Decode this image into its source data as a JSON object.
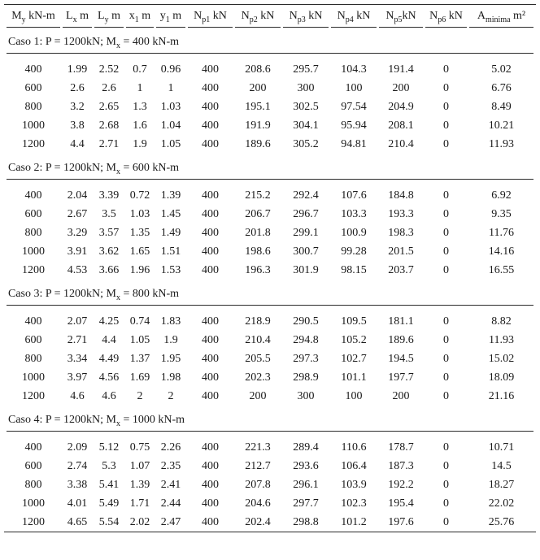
{
  "page": {
    "background": "#ffffff",
    "text_color": "#1a1a1a",
    "rule_color": "#2a2a2a"
  },
  "table": {
    "headers": [
      {
        "pre": "M",
        "sub": "y",
        "post": " kN-m"
      },
      {
        "pre": "L",
        "sub": "x",
        "post": " m"
      },
      {
        "pre": "L",
        "sub": "y",
        "post": " m"
      },
      {
        "pre": "x",
        "sub": "1",
        "post": " m"
      },
      {
        "pre": "y",
        "sub": "1",
        "post": " m"
      },
      {
        "pre": "N",
        "sub": "p1",
        "post": " kN"
      },
      {
        "pre": "N",
        "sub": "p2",
        "post": " kN"
      },
      {
        "pre": "N",
        "sub": "p3",
        "post": " kN"
      },
      {
        "pre": "N",
        "sub": "p4",
        "post": " kN"
      },
      {
        "pre": "N",
        "sub": "p5",
        "post": "kN"
      },
      {
        "pre": "N",
        "sub": "p6",
        "post": " kN"
      },
      {
        "pre": "A",
        "sub": "minima",
        "post": " m²"
      }
    ],
    "sections": [
      {
        "label": {
          "pre": "Caso 1: P = 1200kN; M",
          "sub": "x",
          "post": " = 400 kN-m"
        },
        "rows": [
          [
            "400",
            "1.99",
            "2.52",
            "0.7",
            "0.96",
            "400",
            "208.6",
            "295.7",
            "104.3",
            "191.4",
            "0",
            "5.02"
          ],
          [
            "600",
            "2.6",
            "2.6",
            "1",
            "1",
            "400",
            "200",
            "300",
            "100",
            "200",
            "0",
            "6.76"
          ],
          [
            "800",
            "3.2",
            "2.65",
            "1.3",
            "1.03",
            "400",
            "195.1",
            "302.5",
            "97.54",
            "204.9",
            "0",
            "8.49"
          ],
          [
            "1000",
            "3.8",
            "2.68",
            "1.6",
            "1.04",
            "400",
            "191.9",
            "304.1",
            "95.94",
            "208.1",
            "0",
            "10.21"
          ],
          [
            "1200",
            "4.4",
            "2.71",
            "1.9",
            "1.05",
            "400",
            "189.6",
            "305.2",
            "94.81",
            "210.4",
            "0",
            "11.93"
          ]
        ]
      },
      {
        "label": {
          "pre": "Caso 2: P = 1200kN; M",
          "sub": "x",
          "post": " = 600 kN-m"
        },
        "rows": [
          [
            "400",
            "2.04",
            "3.39",
            "0.72",
            "1.39",
            "400",
            "215.2",
            "292.4",
            "107.6",
            "184.8",
            "0",
            "6.92"
          ],
          [
            "600",
            "2.67",
            "3.5",
            "1.03",
            "1.45",
            "400",
            "206.7",
            "296.7",
            "103.3",
            "193.3",
            "0",
            "9.35"
          ],
          [
            "800",
            "3.29",
            "3.57",
            "1.35",
            "1.49",
            "400",
            "201.8",
            "299.1",
            "100.9",
            "198.3",
            "0",
            "11.76"
          ],
          [
            "1000",
            "3.91",
            "3.62",
            "1.65",
            "1.51",
            "400",
            "198.6",
            "300.7",
            "99.28",
            "201.5",
            "0",
            "14.16"
          ],
          [
            "1200",
            "4.53",
            "3.66",
            "1.96",
            "1.53",
            "400",
            "196.3",
            "301.9",
            "98.15",
            "203.7",
            "0",
            "16.55"
          ]
        ]
      },
      {
        "label": {
          "pre": "Caso 3: P = 1200kN; M",
          "sub": "x",
          "post": " = 800 kN-m"
        },
        "rows": [
          [
            "400",
            "2.07",
            "4.25",
            "0.74",
            "1.83",
            "400",
            "218.9",
            "290.5",
            "109.5",
            "181.1",
            "0",
            "8.82"
          ],
          [
            "600",
            "2.71",
            "4.4",
            "1.05",
            "1.9",
            "400",
            "210.4",
            "294.8",
            "105.2",
            "189.6",
            "0",
            "11.93"
          ],
          [
            "800",
            "3.34",
            "4.49",
            "1.37",
            "1.95",
            "400",
            "205.5",
            "297.3",
            "102.7",
            "194.5",
            "0",
            "15.02"
          ],
          [
            "1000",
            "3.97",
            "4.56",
            "1.69",
            "1.98",
            "400",
            "202.3",
            "298.9",
            "101.1",
            "197.7",
            "0",
            "18.09"
          ],
          [
            "1200",
            "4.6",
            "4.6",
            "2",
            "2",
            "400",
            "200",
            "300",
            "100",
            "200",
            "0",
            "21.16"
          ]
        ]
      },
      {
        "label": {
          "pre": "Caso 4: P = 1200kN; M",
          "sub": "x",
          "post": " = 1000 kN-m"
        },
        "rows": [
          [
            "400",
            "2.09",
            "5.12",
            "0.75",
            "2.26",
            "400",
            "221.3",
            "289.4",
            "110.6",
            "178.7",
            "0",
            "10.71"
          ],
          [
            "600",
            "2.74",
            "5.3",
            "1.07",
            "2.35",
            "400",
            "212.7",
            "293.6",
            "106.4",
            "187.3",
            "0",
            "14.5"
          ],
          [
            "800",
            "3.38",
            "5.41",
            "1.39",
            "2.41",
            "400",
            "207.8",
            "296.1",
            "103.9",
            "192.2",
            "0",
            "18.27"
          ],
          [
            "1000",
            "4.01",
            "5.49",
            "1.71",
            "2.44",
            "400",
            "204.6",
            "297.7",
            "102.3",
            "195.4",
            "0",
            "22.02"
          ],
          [
            "1200",
            "4.65",
            "5.54",
            "2.02",
            "2.47",
            "400",
            "202.4",
            "298.8",
            "101.2",
            "197.6",
            "0",
            "25.76"
          ]
        ]
      }
    ]
  }
}
